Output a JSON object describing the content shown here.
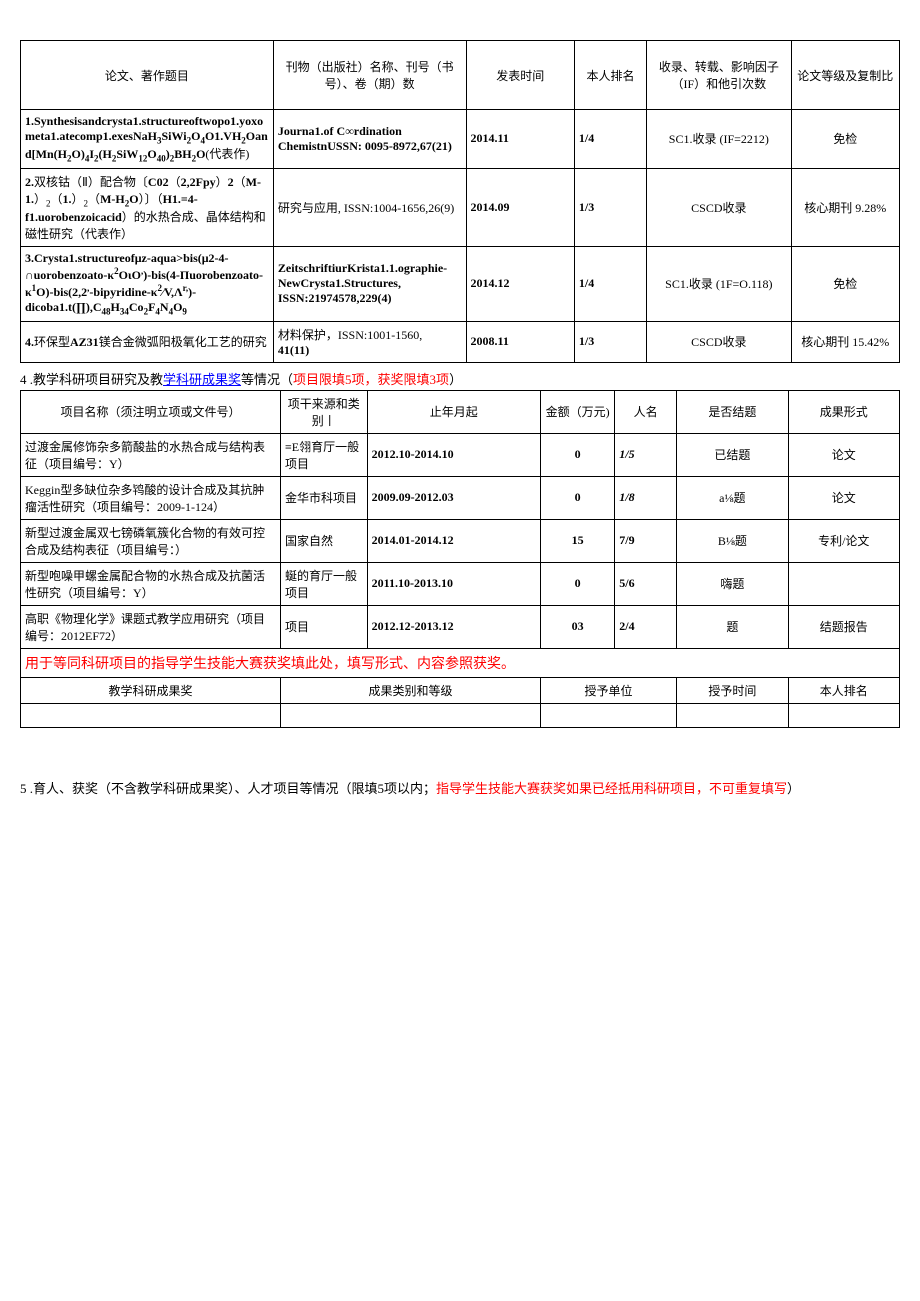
{
  "table1": {
    "headers": {
      "c1": "论文、著作题目",
      "c2": "刊物（出版社）名称、刊号（书号）、卷（期）数",
      "c3": "发表时间",
      "c4": "本人排名",
      "c5": "收录、转载、影响因子（IF）和他引次数",
      "c6": "论文等级及复制比"
    },
    "rows": [
      {
        "title_html": "<b>1.Synthesisandcrysta1.structureoftwopo1.yoxometa1.atecomp1.exesNaH<sub>3</sub>SiWi<sub>2</sub>O<sub>4</sub>O1.VH<sub>2</sub>Oand[Mn(H<sub>2</sub>O)<sub>4</sub>I<sub>2</sub>(H<sub>2</sub>SiW<sub>12</sub>O<sub>40</sub>)<sub>2</sub>BH<sub>2</sub>O</b>(代表作)",
        "pub_html": "<b>Journa1.of C∞rdination ChemistnUSSN: 0095-8972,67(21)</b>",
        "date": "2014.11",
        "rank": "1/4",
        "index": "SC1.收录 (IF=2212)",
        "grade": "免检"
      },
      {
        "title_html": "<b>2.</b>双核钴（Ⅱ）配合物〔<b>C02</b>（<b>2,2Fpy</b>）<b>2</b>（<b>M-1.</b>）<sub>2</sub>（<b>1.</b>）<sub>2</sub>（<b>M-H<sub>2</sub>O</b>）〕（<b>H1.=4-f1.uorobenzoicacid</b>）的水热合成、晶体结构和磁性研究（代表作）",
        "pub_html": "研究与应用, ISSN:1004-1656,26(9)",
        "date": "2014.09",
        "rank": "1/3",
        "index": "CSCD收录",
        "grade": "核心期刊 9.28%"
      },
      {
        "title_html": "<b>3.Crysta1.structureofμz-aqua>bis(μ2-4-∩uorobenzoato-κ<sup>2</sup>OιO<sup>,</sup>)-bis(4-Πuorobenzoato-κ<sup>1</sup>O)-bis(2,2<sup>,</sup>-bipyridine-κ<sup>2</sup>∕V,Λ<sup>r,</sup>)-dicoba1.t(∏),C<sub>48</sub>H<sub>34</sub>Co<sub>2</sub>F<sub>4</sub>N<sub>4</sub>O<sub>9</sub></b>",
        "pub_html": "<b>ZeitschriftiurKrista1.1.ographie-NewCrysta1.Structures, ISSN:21974578,229(4)</b>",
        "date": "2014.12",
        "rank": "1/4",
        "index": "SC1.收录 (1F=O.118)",
        "grade": "免检"
      },
      {
        "title_html": "<b>4.</b>环保型<b>AZ31</b>镁合金微弧阳极氧化工艺的研究",
        "pub_html": "材料保护，ISSN:1001-1560,<br><b>41(11)</b>",
        "date": "2008.11",
        "rank": "1/3",
        "index": "CSCD收录",
        "grade": "核心期刊 15.42%"
      }
    ]
  },
  "section4": {
    "title_prefix": "4 .教学科研项目研究及教",
    "title_link": "学科研成果奖",
    "title_mid": "等情况（",
    "title_red": "项目限填5项，获奖限填3项",
    "title_suffix": "）"
  },
  "table2": {
    "headers": {
      "c1": "项目名称（须注明立项或文件号）",
      "c2": "项干来源和类别丨",
      "c3": "止年月起",
      "c4": "金额（万元)",
      "c5": "人名",
      "c6": "是否结题",
      "c7": "成果形式"
    },
    "rows": [
      {
        "name": "过渡金属修饰杂多箭酸盐的水热合成与结构表征（项目编号：Y）",
        "src": "≡E翎育厅一般项目",
        "date": "2012.10-2014.10",
        "amt": "0",
        "rank": "1/5",
        "status": "已结题",
        "form": "论文",
        "rank_italic": true
      },
      {
        "name": "Keggin型多缺位杂多鸨酸的设计合成及其抗肿瘤活性研究（项目编号：2009-1-124）",
        "src": "金华市科项目",
        "date": "2009.09-2012.03",
        "amt": "0",
        "rank": "1/8",
        "status": "a⅛题",
        "form": "论文",
        "rank_italic": true
      },
      {
        "name": "新型过渡金属双七镑磷氧簇化合物的有效可控合成及结构表征（项目编号：）",
        "src": "国家自然",
        "date": "2014.01-2014.12",
        "amt": "15",
        "rank": "7/9",
        "status": "B⅛题",
        "form": "专利/论文",
        "rank_italic": false
      },
      {
        "name": "新型咆噪甲螺金属配合物的水热合成及抗菌活性研究（项目编号：Y）",
        "src": "蜒的育厅一般项目",
        "date": "2011.10-2013.10",
        "amt": "0",
        "rank": "5/6",
        "status": "嗨题",
        "form": "",
        "rank_italic": false
      },
      {
        "name": "高职《物理化学》课题式教学应用研究（项目编号：2012EF72）",
        "src": "项目",
        "date": "2012.12-2013.12",
        "amt": "03",
        "rank": "2/4",
        "status": "题",
        "form": "结题报告",
        "rank_italic": false
      }
    ],
    "redline": "用于等同科研项目的指导学生技能大赛获奖填此处，填写形式、内容参照获奖。",
    "sub_headers": {
      "c1": "教学科研成果奖",
      "c2": "成果类别和等级",
      "c3": "授予单位",
      "c4": "授予时间",
      "c5": "本人排名"
    }
  },
  "section5": {
    "prefix": "5 .育人、获奖（不含教学科研成果奖）、人才项目等情况（限填5项以内；",
    "red": "指导学生技能大赛获奖如果已经抵用科研项目，不可重复填写",
    "suffix": "）"
  }
}
